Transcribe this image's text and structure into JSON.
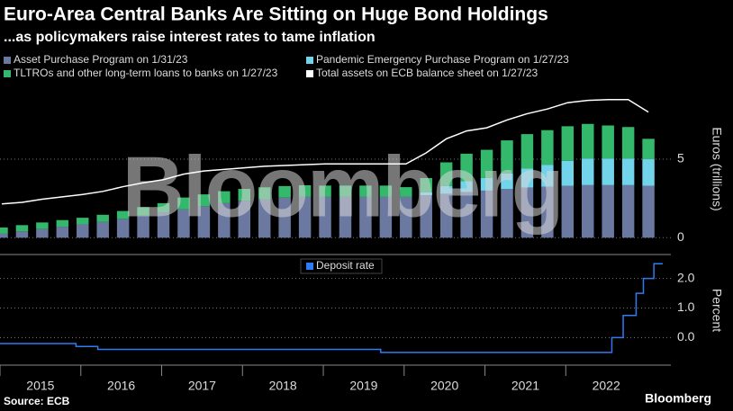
{
  "chart_data": [
    {
      "type": "stacked-bar-line",
      "title": "Euro-Area Central Banks Are Sitting on Huge Bond Holdings",
      "subtitle": "...as policymakers raise interest rates to tame inflation",
      "watermark": "Bloomberg",
      "y_label": "Euros (trillions)",
      "x": [
        2015.0,
        2015.25,
        2015.5,
        2015.75,
        2016.0,
        2016.25,
        2016.5,
        2016.75,
        2017.0,
        2017.25,
        2017.5,
        2017.75,
        2018.0,
        2018.25,
        2018.5,
        2018.75,
        2019.0,
        2019.25,
        2019.5,
        2019.75,
        2020.0,
        2020.25,
        2020.5,
        2020.75,
        2021.0,
        2021.25,
        2021.5,
        2021.75,
        2022.0,
        2022.25,
        2022.5,
        2022.75,
        2023.0
      ],
      "series": [
        {
          "name": "Asset Purchase Program on 1/31/23",
          "color": "#6b78a0",
          "kind": "bar",
          "values": [
            0.25,
            0.4,
            0.55,
            0.7,
            0.85,
            1.0,
            1.2,
            1.4,
            1.6,
            1.8,
            2.0,
            2.2,
            2.35,
            2.45,
            2.55,
            2.6,
            2.6,
            2.6,
            2.6,
            2.6,
            2.6,
            2.7,
            2.8,
            2.9,
            3.0,
            3.1,
            3.2,
            3.25,
            3.3,
            3.35,
            3.35,
            3.35,
            3.3
          ]
        },
        {
          "name": "Pandemic Emergency Purchase Program on 1/27/23",
          "color": "#72d4ea",
          "kind": "bar",
          "values": [
            0,
            0,
            0,
            0,
            0,
            0,
            0,
            0,
            0,
            0,
            0,
            0,
            0,
            0,
            0,
            0,
            0,
            0,
            0,
            0,
            0,
            0.2,
            0.5,
            0.7,
            0.8,
            1.0,
            1.2,
            1.4,
            1.6,
            1.7,
            1.7,
            1.7,
            1.7
          ]
        },
        {
          "name": "TLTROs and other long-term loans to banks on 1/27/23",
          "color": "#33b86c",
          "kind": "bar",
          "values": [
            0.4,
            0.4,
            0.42,
            0.42,
            0.42,
            0.46,
            0.5,
            0.55,
            0.6,
            0.76,
            0.76,
            0.76,
            0.76,
            0.76,
            0.74,
            0.74,
            0.72,
            0.72,
            0.72,
            0.72,
            0.62,
            0.9,
            1.5,
            1.75,
            1.8,
            2.1,
            2.2,
            2.2,
            2.2,
            2.2,
            2.1,
            2.0,
            1.3
          ]
        },
        {
          "name": "Total assets on ECB balance sheet on 1/27/23",
          "color": "#ffffff",
          "kind": "line",
          "values": [
            2.15,
            2.25,
            2.45,
            2.6,
            2.75,
            2.95,
            3.25,
            3.5,
            3.7,
            4.05,
            4.25,
            4.35,
            4.45,
            4.55,
            4.6,
            4.65,
            4.7,
            4.7,
            4.7,
            4.7,
            4.7,
            5.4,
            6.3,
            6.8,
            7.0,
            7.5,
            7.9,
            8.2,
            8.6,
            8.75,
            8.8,
            8.8,
            8.0
          ]
        }
      ],
      "xlim": [
        2015.0,
        2023.3
      ],
      "ylim": [
        -0.9,
        9.7
      ],
      "yticks": [
        0,
        5
      ],
      "grid": true
    },
    {
      "type": "line",
      "y_label": "Percent",
      "step": true,
      "x": [
        2015.0,
        2015.94,
        2016.21,
        2019.71,
        2022.57,
        2022.71,
        2022.87,
        2022.96,
        2023.09,
        2023.2
      ],
      "series": [
        {
          "name": "Deposit rate",
          "color": "#2f7bf0",
          "values": [
            -0.2,
            -0.3,
            -0.4,
            -0.5,
            0,
            0.75,
            1.5,
            2.0,
            2.5,
            2.5
          ]
        }
      ],
      "xlim": [
        2015.0,
        2023.3
      ],
      "ylim": [
        -0.9,
        2.75
      ],
      "yticks": [
        {
          "value": 0,
          "label": "0.0"
        },
        {
          "value": 1,
          "label": "1.0"
        },
        {
          "value": 2,
          "label": "2.0"
        }
      ],
      "xticks": [
        {
          "value": 2015,
          "label": "2015"
        },
        {
          "value": 2016,
          "label": "2016"
        },
        {
          "value": 2017,
          "label": "2017"
        },
        {
          "value": 2018,
          "label": "2018"
        },
        {
          "value": 2019,
          "label": "2019"
        },
        {
          "value": 2020,
          "label": "2020"
        },
        {
          "value": 2021,
          "label": "2021"
        },
        {
          "value": 2022,
          "label": "2022"
        }
      ],
      "grid": true
    }
  ],
  "footer": {
    "source": "Source: ECB",
    "brand": "Bloomberg"
  }
}
